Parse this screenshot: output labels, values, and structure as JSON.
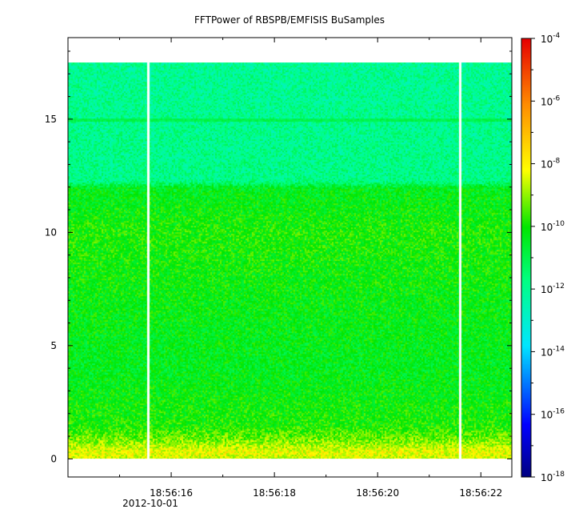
{
  "chart_data": {
    "type": "heatmap",
    "title": "FFTPower of RBSPB/EMFISIS  BuSamples",
    "xlabel": "",
    "ylabel": "",
    "x_date_label": "2012-10-01",
    "x_tick_labels": [
      "18:56:16",
      "18:56:18",
      "18:56:20",
      "18:56:22"
    ],
    "x_tick_seconds": [
      16,
      18,
      20,
      22
    ],
    "x_range_seconds": [
      14.0,
      22.6
    ],
    "y_ticks": [
      0,
      5,
      10,
      15
    ],
    "ylim": [
      -0.8,
      18.6
    ],
    "data_y_range": [
      0,
      17.5
    ],
    "data_gaps_seconds": [
      15.55,
      21.6
    ],
    "colorbar": {
      "scale": "log",
      "range": [
        1e-18,
        0.0001
      ],
      "tick_exponents": [
        -4,
        -6,
        -8,
        -10,
        -12,
        -14,
        -16,
        -18
      ],
      "tick_base": "10"
    },
    "power_profile_log10": [
      {
        "y": 0.0,
        "v": -8.6
      },
      {
        "y": 0.3,
        "v": -8.2
      },
      {
        "y": 0.8,
        "v": -9.1
      },
      {
        "y": 1.5,
        "v": -9.9
      },
      {
        "y": 4.0,
        "v": -10.4
      },
      {
        "y": 7.0,
        "v": -10.2
      },
      {
        "y": 10.0,
        "v": -9.9
      },
      {
        "y": 12.0,
        "v": -10.4
      },
      {
        "y": 12.3,
        "v": -11.8
      },
      {
        "y": 15.0,
        "v": -11.9
      },
      {
        "y": 17.5,
        "v": -12.0
      }
    ],
    "line_feature": {
      "y": 15.0,
      "v": -11.0
    },
    "grid": false,
    "legend": "colorbar right"
  }
}
